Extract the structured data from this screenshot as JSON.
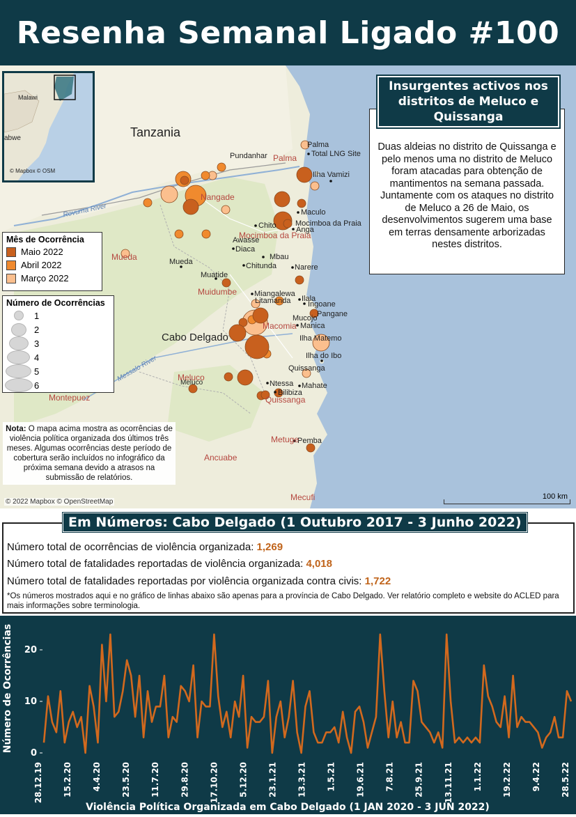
{
  "header": {
    "title": "Resenha Semanal Ligado #100"
  },
  "colors": {
    "header_bg": "#0f3a47",
    "maio": "#c8601e",
    "abril": "#f08a2e",
    "marco": "#fbbf8e",
    "value_orange": "#c0641b",
    "line": "#d2691e"
  },
  "map": {
    "inset_credit": "© Mapbox © OSM",
    "inset_labels": [
      "Malawi",
      "abwe"
    ],
    "places_large": [
      "Tanzania",
      "Cabo Delgado"
    ],
    "places_black": [
      "Palma",
      "Total LNG Site",
      "Ilha Vamizi",
      "Pundanhar",
      "Maculo",
      "Chito",
      "Mocimboa da Praia",
      "Anga",
      "Awasse",
      "Diaca",
      "Mbau",
      "Mueda",
      "Chitunda",
      "Narere",
      "Muatide",
      "Miangalewa",
      "Litamanda",
      "Ilala",
      "Ingoane",
      "Pangane",
      "Mucojo",
      "Manica",
      "Ilha Matemo",
      "Ilha do Ibo",
      "Quissanga",
      "Meluco",
      "Ntessa",
      "Mahate",
      "Bilibiza",
      "Pemba",
      "Ancuabe"
    ],
    "places_red": [
      "Palma",
      "Nangade",
      "Mocimboa da Praia",
      "Mueda",
      "Muidumbe",
      "Macomia",
      "Meluco",
      "Quissanga",
      "Montepuez",
      "Metuge",
      "Mecufi"
    ],
    "rivers": [
      "Rovuma River",
      "Messalo River"
    ],
    "legend_month": {
      "title": "Mês de Ocorrência",
      "items": [
        {
          "label": "Maio 2022",
          "color": "#c8601e"
        },
        {
          "label": "Abril 2022",
          "color": "#f08a2e"
        },
        {
          "label": "Março 2022",
          "color": "#fbbf8e"
        }
      ]
    },
    "legend_count": {
      "title": "Número de Ocorrências",
      "items": [
        "1",
        "2",
        "3",
        "4",
        "5",
        "6"
      ]
    },
    "note_bold": "Nota:",
    "note_text": "O mapa acima mostra as ocorrências de violência política organizada dos últimos três meses. Algumas ocorrências deste período de cobertura serão incluídos no infográfico da próxima semana devido a atrasos na submissão de relatórios.",
    "credit": "© 2022 Mapbox © OpenStreetMap",
    "scale": "100 km"
  },
  "callout": {
    "title": "Insurgentes activos nos distritos de Meluco e Quissanga",
    "body": "Duas aldeias no distrito de Quissanga e pelo menos uma no distrito de Meluco foram atacadas para obtenção de mantimentos na semana passada. Juntamente com os ataques no distrito de Meluco a 26 de Maio, os desenvolvimentos sugerem uma base em terras densamente arborizadas nestes distritos."
  },
  "numbers": {
    "title": "Em Números: Cabo Delgado (1 Outubro 2017 - 3 Junho 2022)",
    "lines": [
      {
        "label": "Número total de ocorrências de violência organizada: ",
        "value": "1,269"
      },
      {
        "label": "Número total de fatalidades reportadas de violência organizada: ",
        "value": "4,018"
      },
      {
        "label": "Número total de fatalidades reportadas por violência organizada contra civis: ",
        "value": "1,722"
      }
    ],
    "note": "*Os números mostrados aqui e no gráfico de linhas abaixo são apenas para a província de Cabo Delgado. Ver relatório completo e website do ACLED para mais informações sobre terminologia."
  },
  "chart_data": {
    "type": "line",
    "title": "",
    "xlabel": "Violência Política Organizada em Cabo Delgado (1 JAN 2020 - 3 JUN 2022)",
    "ylabel": "Número de Ocorrências",
    "ylim": [
      0,
      25
    ],
    "yticks": [
      0,
      10,
      20
    ],
    "xtick_labels": [
      "28.12.19",
      "15.2.20",
      "4.4.20",
      "23.5.20",
      "11.7.20",
      "29.8.20",
      "17.10.20",
      "5.12.20",
      "23.1.21",
      "13.3.21",
      "1.5.21",
      "19.6.21",
      "7.8.21",
      "25.9.21",
      "13.11.21",
      "1.1.22",
      "19.2.22",
      "9.4.22",
      "28.5.22"
    ],
    "series": [
      {
        "values": [
          2,
          11,
          6,
          4,
          12,
          2,
          6,
          8,
          5,
          7,
          0,
          13,
          9,
          2,
          21,
          10,
          23,
          7,
          8,
          12,
          18,
          15,
          7,
          15,
          3,
          12,
          6,
          9,
          9,
          15,
          3,
          7,
          6,
          13,
          12,
          10,
          17,
          3,
          10,
          9,
          9,
          23,
          11,
          5,
          8,
          3,
          10,
          7,
          15,
          1,
          7,
          6,
          6,
          7,
          14,
          0,
          7,
          10,
          3,
          7,
          14,
          4,
          0,
          9,
          12,
          4,
          2,
          2,
          4,
          4,
          5,
          2,
          8,
          3,
          0,
          8,
          9,
          6,
          1,
          4,
          7,
          23,
          12,
          3,
          10,
          3,
          6,
          2,
          2,
          14,
          12,
          6,
          5,
          4,
          2,
          4,
          1,
          23,
          10,
          2,
          3,
          2,
          3,
          2,
          3,
          2,
          17,
          11,
          9,
          6,
          5,
          11,
          3,
          15,
          5,
          7,
          6,
          6,
          5,
          4,
          1,
          3,
          4,
          7,
          3,
          3,
          12,
          10
        ]
      }
    ]
  }
}
